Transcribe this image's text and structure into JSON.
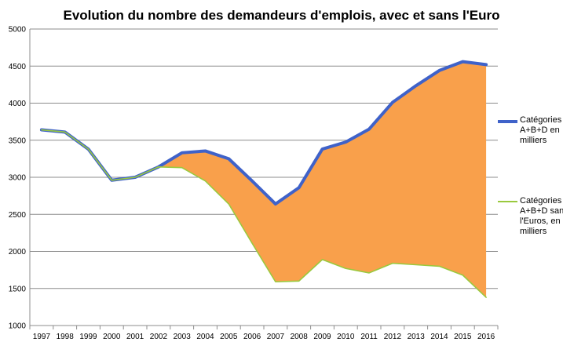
{
  "chart_data": {
    "type": "line",
    "title": "Evolution du nombre des demandeurs d'emplois, avec et sans l'Euro",
    "xlabel": "",
    "ylabel": "",
    "categories": [
      "1997",
      "1998",
      "1999",
      "2000",
      "2001",
      "2002",
      "2003",
      "2004",
      "2005",
      "2006",
      "2007",
      "2008",
      "2009",
      "2010",
      "2011",
      "2012",
      "2013",
      "2014",
      "2015",
      "2016"
    ],
    "ylim": [
      1000,
      5000
    ],
    "yticks": [
      1000,
      1500,
      2000,
      2500,
      3000,
      3500,
      4000,
      4500,
      5000
    ],
    "grid": true,
    "legend_position": "right",
    "fill_between_series": true,
    "fill_color": "#f9a04b",
    "series": [
      {
        "name": "Catégories A+B+D en milliers",
        "color": "#3f62c9",
        "values": [
          3640,
          3610,
          3380,
          2960,
          3000,
          3140,
          3330,
          3355,
          3250,
          2950,
          2640,
          2860,
          3380,
          3475,
          3650,
          4010,
          4235,
          4440,
          4560,
          4520
        ]
      },
      {
        "name": "Catégories A+B+D sans l'Euros, en milliers",
        "color": "#9ac93e",
        "values": [
          3640,
          3610,
          3380,
          2960,
          3000,
          3140,
          3130,
          2950,
          2640,
          2110,
          1590,
          1600,
          1890,
          1770,
          1710,
          1840,
          1820,
          1800,
          1680,
          1380
        ]
      }
    ]
  }
}
